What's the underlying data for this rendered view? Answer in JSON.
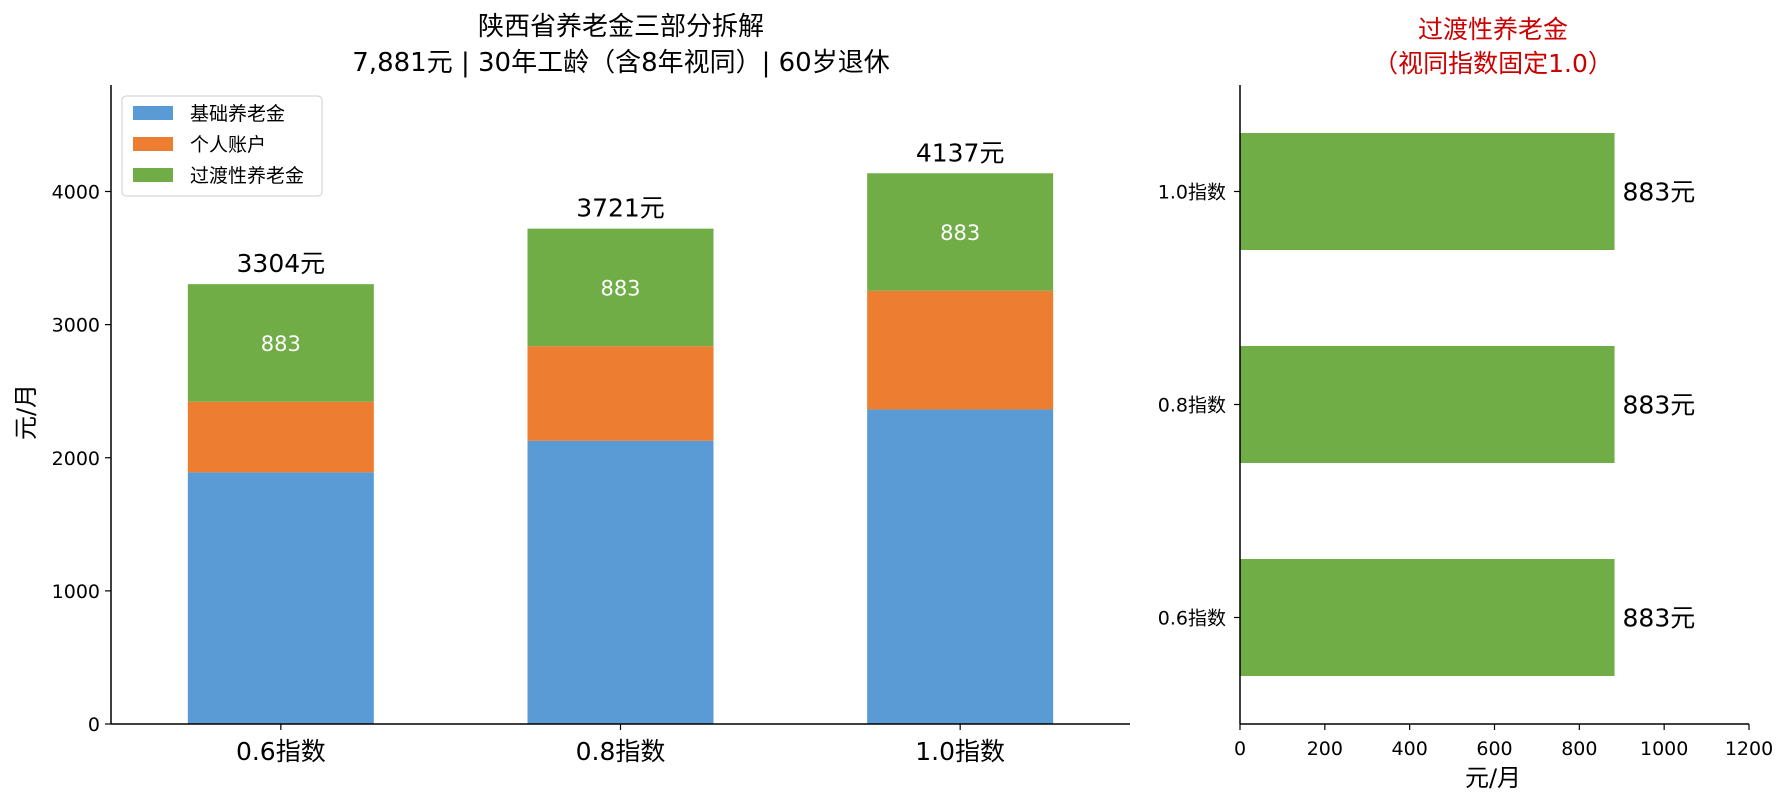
{
  "chart_data": [
    {
      "type": "bar",
      "stacked": true,
      "title": "陕西省养老金三部分拆解",
      "subtitle": "7,881元 | 30年工龄（含8年视同）| 60岁退休",
      "xlabel": "",
      "ylabel": "元/月",
      "categories": [
        "0.6指数",
        "0.8指数",
        "1.0指数"
      ],
      "series": [
        {
          "name": "基础养老金",
          "values": [
            1890,
            2128,
            2363
          ],
          "color": "#5b9bd5"
        },
        {
          "name": "个人账户",
          "values": [
            531,
            710,
            891
          ],
          "color": "#ed7d31"
        },
        {
          "name": "过渡性养老金",
          "values": [
            883,
            883,
            883
          ],
          "color": "#70ad47"
        }
      ],
      "segment_labels": [
        "883",
        "883",
        "883"
      ],
      "total_labels": [
        "3304元",
        "3721元",
        "4137元"
      ],
      "ylim": [
        0,
        4800
      ],
      "yticks": [
        "0",
        "1000",
        "2000",
        "3000",
        "4000"
      ],
      "legend_position": "top-left",
      "grid": false
    },
    {
      "type": "bar",
      "orientation": "horizontal",
      "title": "过渡性养老金",
      "subtitle": "（视同指数固定1.0）",
      "title_color": "#cc0000",
      "xlabel": "元/月",
      "ylabel": "",
      "categories": [
        "0.6指数",
        "0.8指数",
        "1.0指数"
      ],
      "values": [
        883,
        883,
        883
      ],
      "value_labels": [
        "883元",
        "883元",
        "883元"
      ],
      "color": "#70ad47",
      "xlim": [
        0,
        1200
      ],
      "xticks": [
        "0",
        "200",
        "400",
        "600",
        "800",
        "1000",
        "1200"
      ],
      "grid": false
    }
  ]
}
